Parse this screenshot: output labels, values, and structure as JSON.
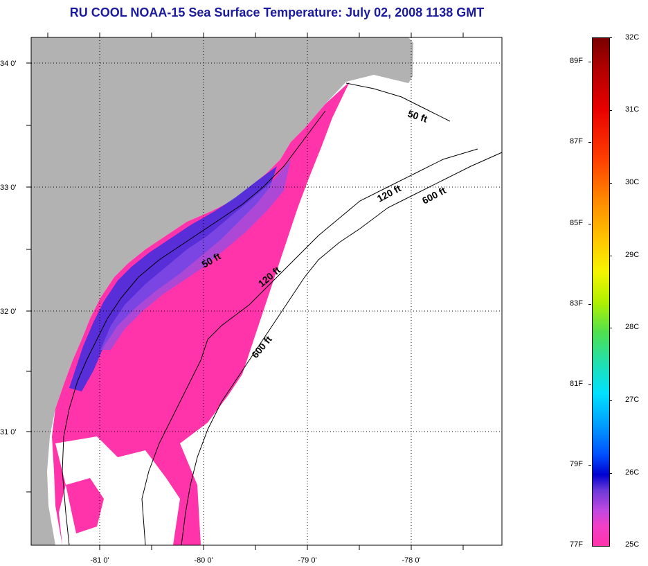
{
  "title": "RU COOL  NOAA-15  Sea Surface Temperature:  July 02, 2008 1138 GMT",
  "map": {
    "lat_labels": [
      "34 0'",
      "33 0'",
      "32 0'",
      "31 0'"
    ],
    "lon_labels": [
      "-81 0'",
      "-80 0'",
      "-79 0'",
      "-78 0'"
    ],
    "contour_labels": {
      "c50_north": "50 ft",
      "c50_south": "50 ft",
      "c120_north": "120 ft",
      "c120_south": "120 ft",
      "c600_north": "600 ft",
      "c600_south": "600 ft"
    }
  },
  "colorbar": {
    "celsius_labels": [
      "32C",
      "31C",
      "30C",
      "29C",
      "28C",
      "27C",
      "26C",
      "25C"
    ],
    "fahrenheit_labels": [
      "89F",
      "87F",
      "85F",
      "83F",
      "81F",
      "79F",
      "77F"
    ]
  },
  "colors": {
    "land": "#b2b2b2",
    "sst_25c": "#ff33aa",
    "sst_26c": "#1e28e6",
    "title": "#1a1aa0"
  }
}
